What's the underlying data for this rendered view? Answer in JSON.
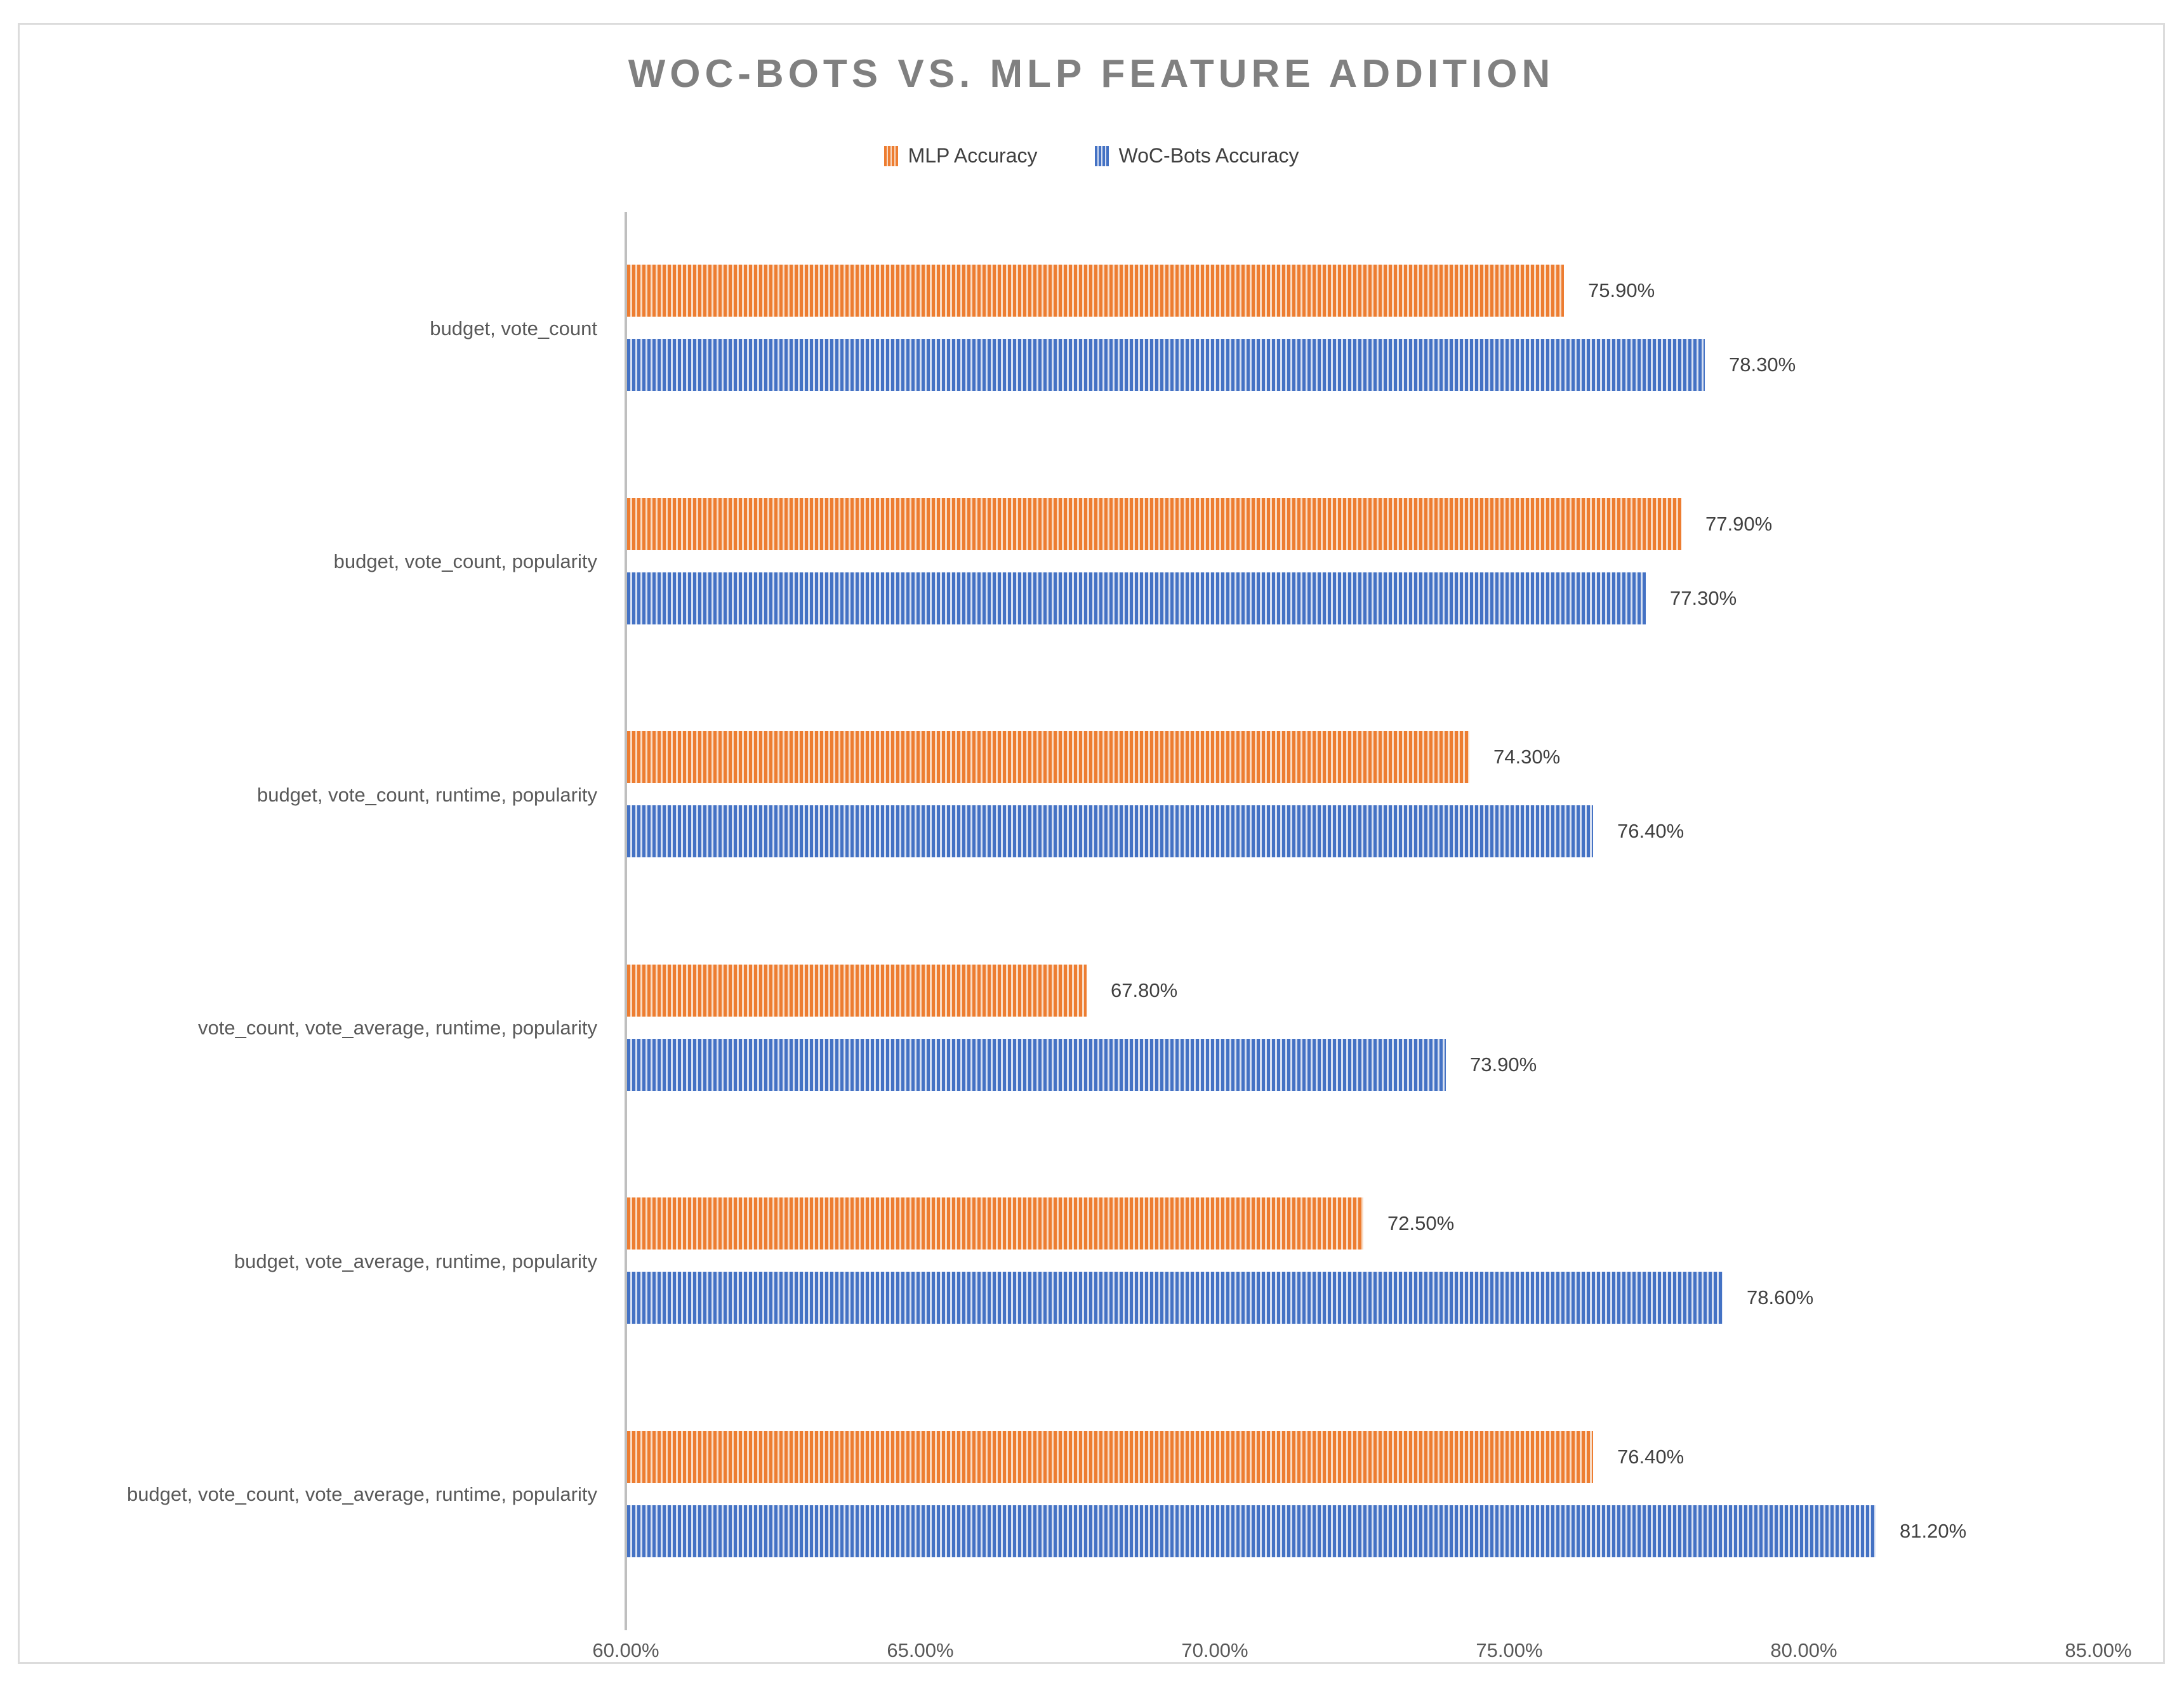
{
  "chart_data": {
    "type": "bar",
    "orientation": "horizontal",
    "title": "WOC-BOTS VS. MLP FEATURE ADDITION",
    "legend_position": "top",
    "grid": false,
    "bar_pattern": "vertical-stripes",
    "categories": [
      "budget, vote_count",
      "budget, vote_count, popularity",
      "budget, vote_count, runtime, popularity",
      "vote_count, vote_average, runtime, popularity",
      "budget, vote_average, runtime, popularity",
      "budget, vote_count, vote_average, runtime, popularity"
    ],
    "series": [
      {
        "name": "MLP Accuracy",
        "color": "#ED7D31",
        "pattern_light": "#F9DCC6",
        "values": [
          75.9,
          77.9,
          74.3,
          67.8,
          72.5,
          76.4
        ],
        "labels": [
          "75.90%",
          "77.90%",
          "74.30%",
          "67.80%",
          "72.50%",
          "76.40%"
        ]
      },
      {
        "name": "WoC-Bots Accuracy",
        "color": "#4472C4",
        "pattern_light": "#D9E1F2",
        "values": [
          78.3,
          77.3,
          76.4,
          73.9,
          78.6,
          81.2
        ],
        "labels": [
          "78.30%",
          "77.30%",
          "76.40%",
          "73.90%",
          "78.60%",
          "81.20%"
        ]
      }
    ],
    "xlim": [
      60,
      85
    ],
    "x_tick_values": [
      60,
      65,
      70,
      75,
      80,
      85
    ],
    "x_ticks": [
      "60.00%",
      "65.00%",
      "70.00%",
      "75.00%",
      "80.00%",
      "85.00%"
    ]
  }
}
